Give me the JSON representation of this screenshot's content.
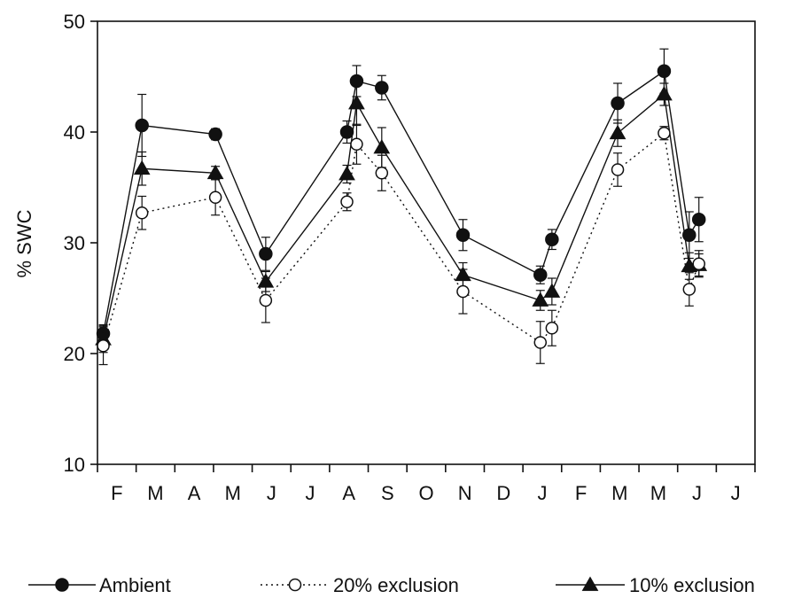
{
  "chart_data": {
    "type": "line",
    "title": "",
    "xlabel": "",
    "ylabel": "% SWC",
    "ylim": [
      10,
      50
    ],
    "yticks": [
      10,
      20,
      30,
      40,
      50
    ],
    "xlim": [
      0,
      17
    ],
    "xticks": [
      "F",
      "M",
      "A",
      "M",
      "J",
      "J",
      "A",
      "S",
      "O",
      "N",
      "D",
      "J",
      "F",
      "M",
      "M",
      "J",
      "J"
    ],
    "grid": false,
    "legend_position": "bottom",
    "series": [
      {
        "name": "Ambient",
        "line_style": "solid",
        "marker": "filled-circle",
        "x": [
          0.15,
          1.15,
          3.05,
          4.35,
          6.45,
          6.7,
          7.35,
          9.45,
          11.45,
          11.75,
          13.45,
          14.65,
          15.3,
          15.55
        ],
        "y": [
          21.8,
          40.6,
          39.8,
          29.0,
          40.0,
          44.6,
          44.0,
          30.7,
          27.1,
          30.3,
          42.6,
          45.5,
          30.7,
          32.1
        ],
        "err": [
          0.8,
          2.8,
          0.5,
          1.5,
          1.0,
          1.4,
          1.1,
          1.4,
          0.8,
          0.9,
          1.8,
          2.0,
          2.1,
          2.0
        ]
      },
      {
        "name": "20% exclusion",
        "line_style": "dotted",
        "marker": "open-circle",
        "x": [
          0.15,
          1.15,
          3.05,
          4.35,
          6.45,
          6.7,
          7.35,
          9.45,
          11.45,
          11.75,
          13.45,
          14.65,
          15.3,
          15.55
        ],
        "y": [
          20.7,
          32.7,
          34.1,
          24.8,
          33.7,
          38.9,
          36.3,
          25.6,
          21.0,
          22.3,
          36.6,
          39.9,
          25.8,
          28.1
        ],
        "err": [
          1.7,
          1.5,
          1.6,
          2.0,
          0.8,
          1.8,
          1.6,
          2.0,
          1.9,
          1.6,
          1.5,
          0.6,
          1.5,
          1.2
        ]
      },
      {
        "name": "10% exclusion",
        "line_style": "solid",
        "marker": "filled-triangle",
        "x": [
          0.15,
          1.15,
          3.05,
          4.35,
          6.45,
          6.7,
          7.35,
          9.45,
          11.45,
          11.75,
          13.45,
          14.65,
          15.3,
          15.55
        ],
        "y": [
          21.3,
          36.7,
          36.3,
          26.5,
          36.2,
          42.6,
          38.6,
          27.1,
          24.8,
          25.6,
          39.9,
          43.4,
          27.9,
          28.0
        ],
        "err": [
          1.2,
          1.5,
          0.6,
          0.9,
          0.8,
          2.0,
          1.8,
          1.1,
          0.9,
          1.2,
          1.2,
          1.0,
          1.2,
          1.0
        ]
      }
    ]
  }
}
